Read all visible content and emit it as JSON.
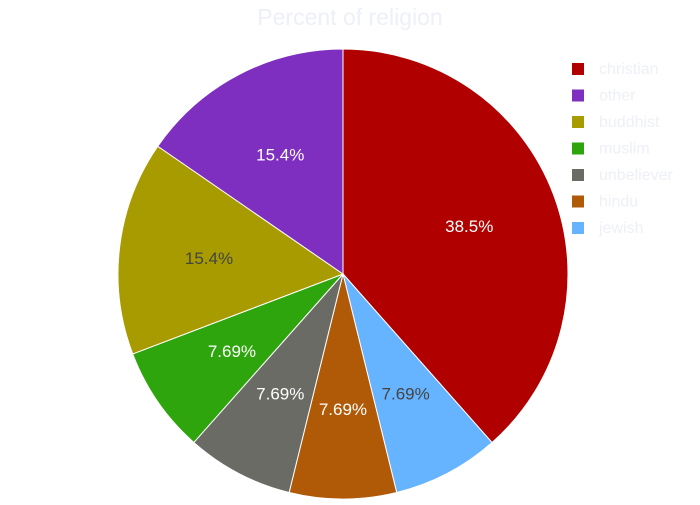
{
  "chart_data": {
    "type": "pie",
    "title": "Percent of religion",
    "slices": [
      {
        "label": "christian",
        "value": 38.5,
        "text": "38.5%",
        "color": "#b00000",
        "text_color": "#ffffff"
      },
      {
        "label": "jewish",
        "value": 7.69,
        "text": "7.69%",
        "color": "#66b3ff",
        "text_color": "#444444"
      },
      {
        "label": "hindu",
        "value": 7.69,
        "text": "7.69%",
        "color": "#b05a08",
        "text_color": "#ffffff"
      },
      {
        "label": "unbeliever",
        "value": 7.69,
        "text": "7.69%",
        "color": "#6b6b66",
        "text_color": "#ffffff"
      },
      {
        "label": "muslim",
        "value": 7.69,
        "text": "7.69%",
        "color": "#2ea50c",
        "text_color": "#ffffff"
      },
      {
        "label": "buddhist",
        "value": 15.4,
        "text": "15.4%",
        "color": "#a89b00",
        "text_color": "#444444"
      },
      {
        "label": "other",
        "value": 15.4,
        "text": "15.4%",
        "color": "#7f2fbf",
        "text_color": "#ffffff"
      }
    ],
    "legend": [
      "christian",
      "other",
      "buddhist",
      "muslim",
      "unbeliever",
      "hindu",
      "jewish"
    ],
    "legend_position": "top-right",
    "direction": "clockwise",
    "start": "top"
  }
}
